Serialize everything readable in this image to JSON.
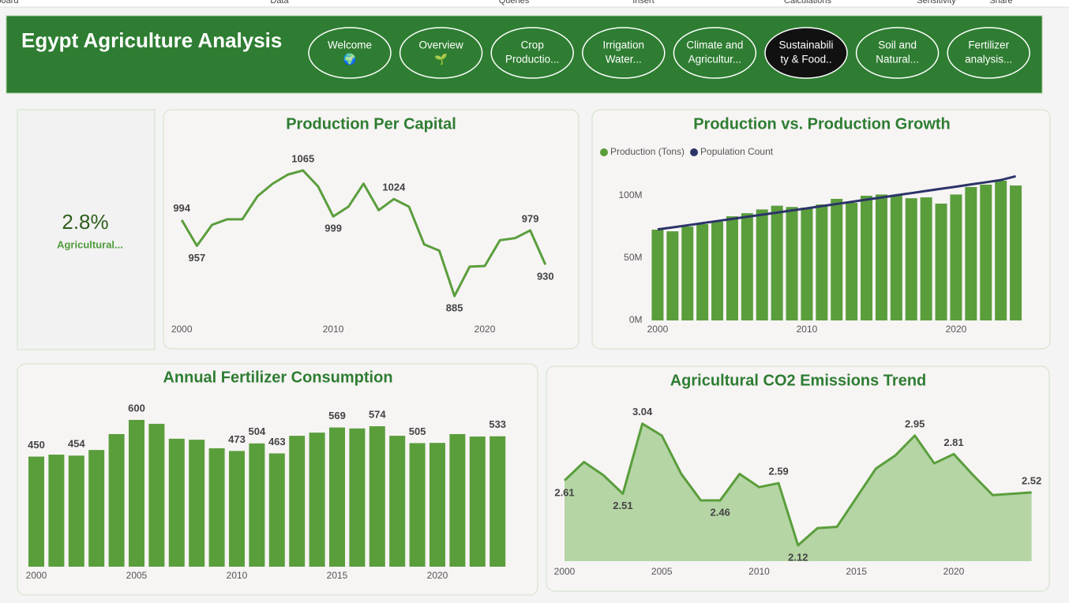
{
  "ribbon": [
    "Clipboard",
    "Data",
    "Queries",
    "Insert",
    "Calculations",
    "Sensitivity",
    "Share"
  ],
  "header": {
    "title": "Egypt Agriculture Analysis",
    "nav": [
      [
        "Welcome",
        "🌍"
      ],
      [
        "Overview",
        "🌱"
      ],
      [
        "Crop",
        "Productio..."
      ],
      [
        "Irrigation",
        "Water..."
      ],
      [
        "Climate and",
        "Agricultur..."
      ],
      [
        "Sustainabili",
        "ty & Food.."
      ],
      [
        "Soil and",
        "Natural..."
      ],
      [
        "Fertilizer",
        "analysis..."
      ]
    ],
    "active": 5
  },
  "kpi": {
    "value": "2.8%",
    "label": "Agricultural..."
  },
  "chart_data": [
    {
      "type": "line",
      "title": "Production Per Capital",
      "color": "#5a9e3c",
      "x": [
        2000,
        2001,
        2002,
        2003,
        2004,
        2005,
        2006,
        2007,
        2008,
        2009,
        2010,
        2011,
        2012,
        2013,
        2014,
        2015,
        2016,
        2017,
        2018,
        2019,
        2020,
        2021,
        2022,
        2023,
        2024
      ],
      "values": [
        994,
        957,
        987,
        995,
        995,
        1028,
        1046,
        1059,
        1065,
        1042,
        999,
        1013,
        1046,
        1008,
        1024,
        1013,
        959,
        950,
        885,
        927,
        928,
        965,
        968,
        979,
        930
      ],
      "value_labels": [
        "994",
        "957",
        null,
        null,
        null,
        null,
        null,
        null,
        "1065",
        null,
        "999",
        null,
        null,
        null,
        "1024",
        null,
        null,
        null,
        "885",
        null,
        null,
        null,
        null,
        "979",
        "930"
      ],
      "xlim": [
        1999,
        2025
      ],
      "xticks": [
        2000,
        2010,
        2020
      ],
      "ylim": [
        850,
        1100
      ]
    },
    {
      "type": "combo",
      "title": "Production vs. Production Growth",
      "x": [
        2000,
        2001,
        2002,
        2003,
        2004,
        2005,
        2006,
        2007,
        2008,
        2009,
        2010,
        2011,
        2012,
        2013,
        2014,
        2015,
        2016,
        2017,
        2018,
        2019,
        2020,
        2021,
        2022,
        2023,
        2024
      ],
      "series": [
        {
          "name": "Production (Tons)",
          "type": "bar",
          "color": "#5a9e3c",
          "values": [
            72800000,
            71500000,
            75300000,
            77200000,
            79100000,
            83500000,
            86000000,
            89000000,
            92000000,
            91000000,
            90500000,
            93000000,
            97500000,
            94300000,
            100000000,
            101000000,
            100600000,
            98000000,
            98700000,
            93700000,
            101000000,
            107000000,
            108900000,
            112000000,
            108200000
          ]
        },
        {
          "name": "Population Count",
          "type": "line",
          "color": "#2b3467",
          "values": [
            73000000,
            74600000,
            76300000,
            78000000,
            79700000,
            81400000,
            83100000,
            84800000,
            86500000,
            88200000,
            89900000,
            91700000,
            93400000,
            95100000,
            96900000,
            98600000,
            100400000,
            102100000,
            103900000,
            105600000,
            107300000,
            109100000,
            110800000,
            112600000,
            115600000
          ]
        }
      ],
      "xlim": [
        1999.5,
        2024.5
      ],
      "xticks": [
        2000,
        2010,
        2020
      ],
      "ylim": [
        0,
        120000000
      ],
      "yticks": [
        {
          "value": 0,
          "label": "0M"
        },
        {
          "value": 50000000,
          "label": "50M"
        },
        {
          "value": 100000000,
          "label": "100M"
        }
      ],
      "legend": "top-left"
    },
    {
      "type": "bar",
      "title": "Annual Fertilizer Consumption",
      "color": "#5a9e3c",
      "x": [
        2000,
        2001,
        2002,
        2003,
        2004,
        2005,
        2006,
        2007,
        2008,
        2009,
        2010,
        2011,
        2012,
        2013,
        2014,
        2015,
        2016,
        2017,
        2018,
        2019,
        2020,
        2021,
        2022,
        2023
      ],
      "values": [
        450,
        458,
        454,
        477,
        542,
        600,
        584,
        523,
        519,
        484,
        473,
        504,
        463,
        535,
        548,
        569,
        565,
        574,
        535,
        505,
        506,
        542,
        532,
        533
      ],
      "value_labels": [
        "450",
        null,
        "454",
        null,
        null,
        "600",
        null,
        null,
        null,
        null,
        "473",
        "504",
        "463",
        null,
        null,
        "569",
        null,
        "574",
        null,
        "505",
        null,
        null,
        null,
        "533"
      ],
      "xlim": [
        1999.5,
        2023.5
      ],
      "xticks": [
        2000,
        2005,
        2010,
        2015,
        2020
      ],
      "ylim": [
        0,
        700
      ]
    },
    {
      "type": "area",
      "title": "Agricultural CO2 Emissions Trend",
      "color": "#5a9e3c",
      "fill": "#b5d5a5",
      "x": [
        2000,
        2001,
        2002,
        2003,
        2004,
        2005,
        2006,
        2007,
        2008,
        2009,
        2010,
        2011,
        2012,
        2013,
        2014,
        2015,
        2016,
        2017,
        2018,
        2019,
        2020,
        2021,
        2022,
        2023,
        2024
      ],
      "values": [
        2.61,
        2.75,
        2.65,
        2.51,
        3.04,
        2.95,
        2.66,
        2.46,
        2.46,
        2.66,
        2.56,
        2.59,
        2.12,
        2.25,
        2.26,
        2.48,
        2.7,
        2.8,
        2.95,
        2.74,
        2.81,
        2.65,
        2.5,
        2.51,
        2.52
      ],
      "value_labels": [
        "2.61",
        null,
        null,
        "2.51",
        "3.04",
        null,
        null,
        null,
        "2.46",
        null,
        null,
        "2.59",
        "2.12",
        null,
        null,
        null,
        null,
        null,
        "2.95",
        null,
        "2.81",
        null,
        null,
        null,
        "2.52"
      ],
      "xlim": [
        2000,
        2024
      ],
      "xticks": [
        2000,
        2005,
        2010,
        2015,
        2020
      ],
      "ylim": [
        2.0,
        3.2
      ]
    }
  ]
}
